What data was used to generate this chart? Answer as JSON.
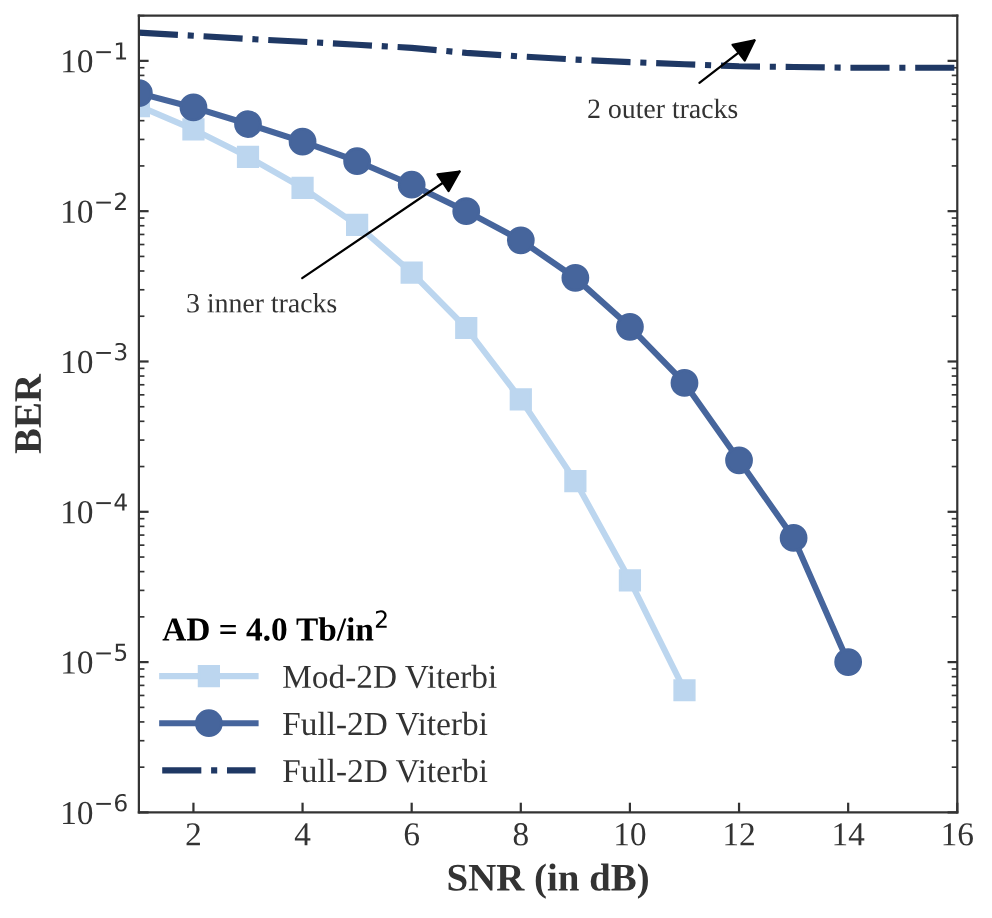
{
  "chart_data": {
    "type": "line",
    "xlabel": "SNR (in dB)",
    "ylabel": "BER",
    "legend_title": "AD = 4.0 Tb/in$^{2}$",
    "x": [
      1,
      2,
      3,
      4,
      5,
      6,
      7,
      8,
      9,
      10,
      11,
      12,
      13,
      14,
      15,
      16
    ],
    "series": [
      {
        "name": "Mod-2D Viterbi",
        "color": "#bcd6ef",
        "marker": "square",
        "line_style": "solid",
        "x": [
          1,
          2,
          3,
          4,
          5,
          6,
          7,
          8,
          9,
          10,
          11
        ],
        "values": [
          0.05,
          0.035,
          0.023,
          0.0143,
          0.0081,
          0.0039,
          0.00167,
          0.00056,
          0.00016,
          3.5e-05,
          6.5e-06
        ]
      },
      {
        "name": "Full-2D Viterbi",
        "color": "#46659c",
        "marker": "circle",
        "line_style": "solid",
        "x": [
          1,
          2,
          3,
          4,
          5,
          6,
          7,
          8,
          9,
          10,
          11,
          12,
          13,
          14
        ],
        "values": [
          0.061,
          0.049,
          0.038,
          0.029,
          0.0215,
          0.015,
          0.01,
          0.0064,
          0.0036,
          0.0017,
          0.00072,
          0.00022,
          6.7e-05,
          1e-05
        ]
      },
      {
        "name": "Full-2D Viterbi",
        "color": "#1f3864",
        "marker": "none",
        "line_style": "dashdot",
        "values": [
          0.154,
          0.147,
          0.14,
          0.134,
          0.128,
          0.122,
          0.113,
          0.107,
          0.102,
          0.098,
          0.095,
          0.092,
          0.091,
          0.09,
          0.09,
          0.09
        ]
      }
    ],
    "annotations": [
      "2 outer tracks",
      "3 inner tracks"
    ],
    "log": "y",
    "xlim": [
      1,
      16
    ],
    "ylim": [
      1e-06,
      0.2
    ],
    "xticks": [
      2,
      4,
      6,
      8,
      10,
      12,
      14,
      16
    ],
    "yticks": [
      {
        "value": 0.1,
        "label": "10$^{−1}$"
      },
      {
        "value": 0.01,
        "label": "10$^{−2}$"
      },
      {
        "value": 0.001,
        "label": "10$^{−3}$"
      },
      {
        "value": 0.0001,
        "label": "10$^{−4}$"
      },
      {
        "value": 1e-05,
        "label": "10$^{−5}$"
      },
      {
        "value": 1e-06,
        "label": "10$^{−6}$"
      }
    ],
    "grid": false,
    "legend": "bottom left"
  }
}
